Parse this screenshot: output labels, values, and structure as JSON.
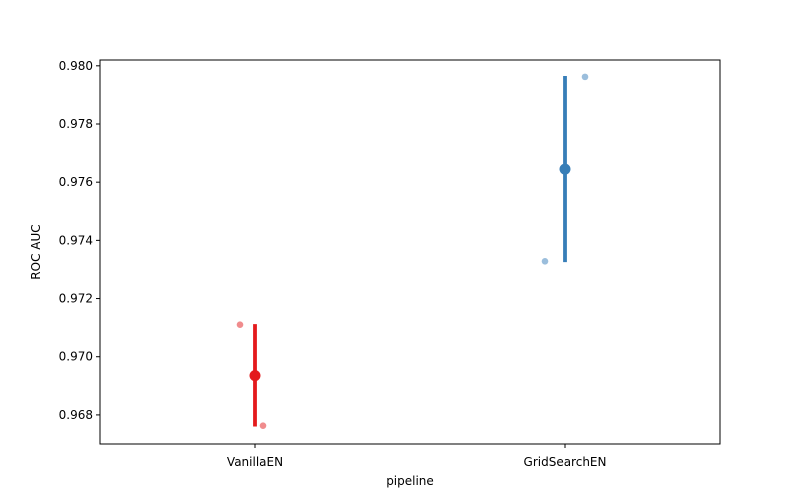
{
  "chart_data": {
    "type": "scatter",
    "xlabel": "pipeline",
    "ylabel": "ROC AUC",
    "categories": [
      "VanillaEN",
      "GridSearchEN"
    ],
    "ylim": [
      0.967,
      0.9802
    ],
    "yticks": [
      "0.968",
      "0.970",
      "0.972",
      "0.974",
      "0.976",
      "0.978",
      "0.980"
    ],
    "grid": false,
    "legend": "none",
    "series": [
      {
        "category": "VanillaEN",
        "color": "#e41a1c",
        "light_color": "#f08c8d",
        "mean": 0.96935,
        "ci": [
          0.9676,
          0.97112
        ],
        "points": [
          0.9711,
          0.96763
        ]
      },
      {
        "category": "GridSearchEN",
        "color": "#377eb8",
        "light_color": "#9bbedc",
        "mean": 0.97645,
        "ci": [
          0.97325,
          0.97965
        ],
        "points": [
          0.97328,
          0.97962
        ]
      }
    ]
  }
}
